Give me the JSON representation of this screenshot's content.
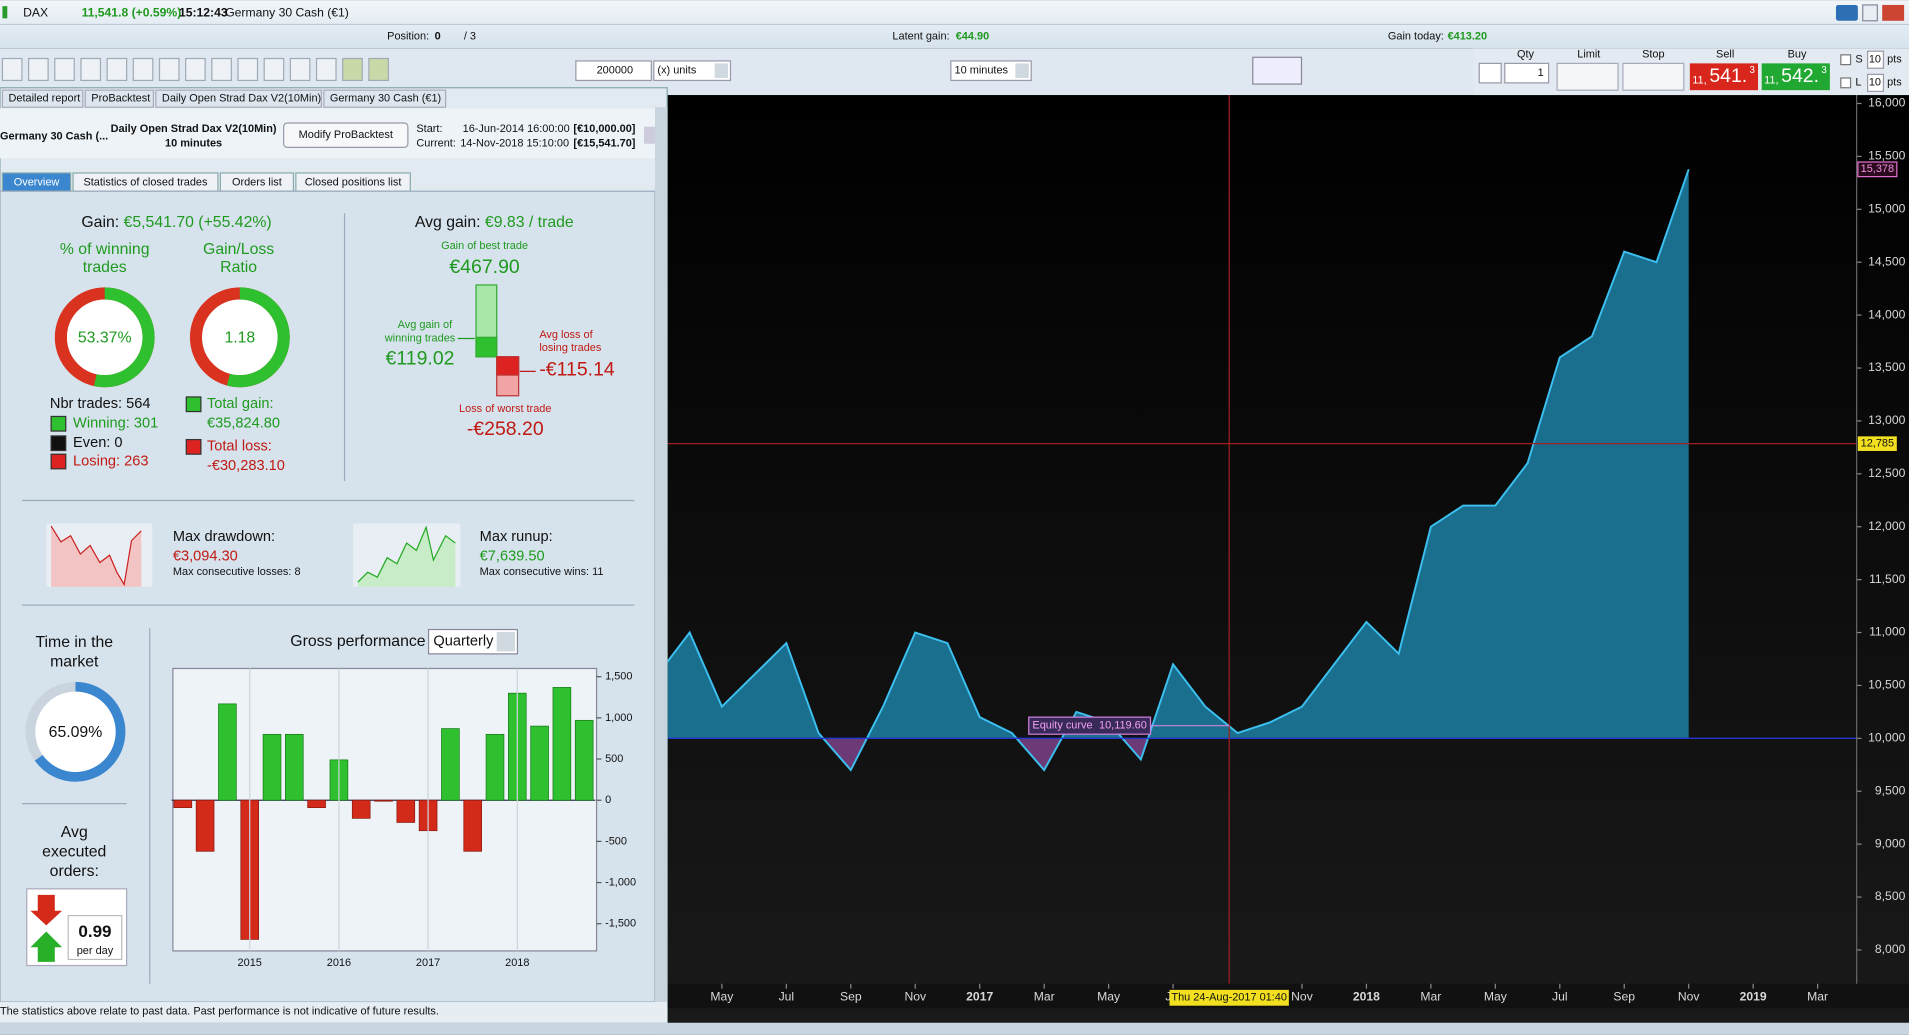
{
  "top_bar": {
    "instrument": "DAX",
    "quote": "11,541.8 (+0.59%)",
    "time": "15:12:43",
    "name": "Germany 30 Cash (€1)"
  },
  "status_bar": {
    "position_label": "Position:",
    "position": "0",
    "orders": "/ 3",
    "latent_label": "Latent gain:",
    "latent": "€44.90",
    "today_label": "Gain today:",
    "today": "€413.20"
  },
  "toolbar": {
    "amount": "200000",
    "units": "(x) units",
    "timeframe": "10 minutes"
  },
  "order_ticket": {
    "qty_label": "Qty",
    "qty": "1",
    "limit": "Limit",
    "stop": "Stop",
    "sell_label": "Sell",
    "buy_label": "Buy",
    "sell_small": "11,",
    "sell_big": "541.",
    "sell_frac": "3",
    "buy_small": "11,",
    "buy_big": "542.",
    "buy_frac": "3",
    "s": "S",
    "l": "L",
    "s_pts": "10",
    "l_pts": "10",
    "pts": "pts"
  },
  "panel_tabs": [
    "Detailed report",
    "ProBacktest",
    "Daily Open Strad Dax V2(10Min)",
    "Germany 30 Cash (€1)"
  ],
  "backtest_header": {
    "instrument": "Germany 30 Cash (...",
    "strategy": "Daily Open Strad Dax V2(10Min)",
    "timeframe": "10 minutes",
    "button": "Modify ProBacktest",
    "start_label": "Start:",
    "start_date": "16-Jun-2014 16:00:00",
    "start_capital": "[€10,000.00]",
    "current_label": "Current:",
    "current_date": "14-Nov-2018 15:10:00",
    "current_capital": "[€15,541.70]"
  },
  "subtabs": [
    "Overview",
    "Statistics of closed trades",
    "Orders list",
    "Closed positions list"
  ],
  "overview": {
    "gain_label": "Gain:",
    "gain": "€5,541.70 (+55.42%)",
    "win_title": [
      "% of winning",
      "trades"
    ],
    "ratio_title": [
      "Gain/Loss",
      "Ratio"
    ],
    "win_rate": {
      "value": 53.37,
      "label": "53.37%"
    },
    "gain_loss_ratio": 1.18,
    "nbr_trades": "Nbr trades: 564",
    "winning": "Winning: 301",
    "even": "Even: 0",
    "losing": "Losing: 263",
    "total_gain_label": "Total gain:",
    "total_gain": "€35,824.80",
    "total_loss_label": "Total loss:",
    "total_loss": "-€30,283.10",
    "avg_gain_label": "Avg gain:",
    "avg_gain": "€9.83 / trade",
    "best_label": "Gain of best trade",
    "best": "€467.90",
    "avg_win_label": [
      "Avg gain of",
      "winning trades"
    ],
    "avg_win": "€119.02",
    "avg_loss_label": [
      "Avg loss of",
      "losing trades"
    ],
    "avg_loss": "-€115.14",
    "worst_label": "Loss of worst trade",
    "worst": "-€258.20",
    "drawdown_label": "Max drawdown:",
    "drawdown": "€3,094.30",
    "max_losses": "Max consecutive losses: 8",
    "runup_label": "Max runup:",
    "runup": "€7,639.50",
    "max_wins": "Max consecutive wins: 11",
    "market_title": [
      "Time in the",
      "market"
    ],
    "time_in_market": {
      "value": 65.09,
      "label": "65.09%"
    },
    "orders_title": [
      "Avg",
      "executed",
      "orders:"
    ],
    "orders_per_day": "0.99",
    "per_day": "per day"
  },
  "gross_performance": {
    "title": "Gross performance",
    "period": "Quarterly"
  },
  "disclaimer": "The statistics above relate to past data. Past performance is not indicative of future results.",
  "chart_data": [
    {
      "type": "area",
      "x": [
        "2016-03",
        "2016-04",
        "2016-05",
        "2016-06",
        "2016-07",
        "2016-08",
        "2016-09",
        "2016-10",
        "2016-11",
        "2016-12",
        "2017-01",
        "2017-02",
        "2017-03",
        "2017-04",
        "2017-05",
        "2017-06",
        "2017-07",
        "2017-08",
        "2017-09",
        "2017-10",
        "2017-11",
        "2017-12",
        "2018-01",
        "2018-02",
        "2018-03",
        "2018-04",
        "2018-05",
        "2018-06",
        "2018-07",
        "2018-08",
        "2018-09",
        "2018-10",
        "2018-11"
      ],
      "series": [
        {
          "name": "Equity curve",
          "color": "#3cc0f0",
          "values": [
            10600,
            11000,
            10300,
            10600,
            10900,
            10050,
            9700,
            10300,
            11000,
            10900,
            10200,
            10050,
            9700,
            10250,
            10150,
            9800,
            10700,
            10300,
            10050,
            10150,
            10300,
            10700,
            11100,
            10800,
            12000,
            12200,
            12200,
            12600,
            13600,
            13800,
            14600,
            14500,
            15378
          ]
        }
      ],
      "xlim": [
        "2016-03",
        "2019-04"
      ],
      "xticks": [
        {
          "value": "2016-05",
          "label": "May"
        },
        {
          "value": "2016-07",
          "label": "Jul"
        },
        {
          "value": "2016-09",
          "label": "Sep"
        },
        {
          "value": "2016-11",
          "label": "Nov"
        },
        {
          "value": "2017-01",
          "label": "2017"
        },
        {
          "value": "2017-03",
          "label": "Mar"
        },
        {
          "value": "2017-05",
          "label": "May"
        },
        {
          "value": "2017-07",
          "label": "Jul"
        },
        {
          "value": "2017-11",
          "label": "Nov"
        },
        {
          "value": "2018-01",
          "label": "2018"
        },
        {
          "value": "2018-03",
          "label": "Mar"
        },
        {
          "value": "2018-05",
          "label": "May"
        },
        {
          "value": "2018-07",
          "label": "Jul"
        },
        {
          "value": "2018-09",
          "label": "Sep"
        },
        {
          "value": "2018-11",
          "label": "Nov"
        },
        {
          "value": "2019-01",
          "label": "2019"
        },
        {
          "value": "2019-03",
          "label": "Mar"
        }
      ],
      "ylim": [
        7680,
        16080
      ],
      "yticks": [
        {
          "value": 8000,
          "label": "8,000"
        },
        {
          "value": 8500,
          "label": "8,500"
        },
        {
          "value": 9000,
          "label": "9,000"
        },
        {
          "value": 9500,
          "label": "9,500"
        },
        {
          "value": 10000,
          "label": "10,000"
        },
        {
          "value": 10500,
          "label": "10,500"
        },
        {
          "value": 11000,
          "label": "11,000"
        },
        {
          "value": 11500,
          "label": "11,500"
        },
        {
          "value": 12000,
          "label": "12,000"
        },
        {
          "value": 12500,
          "label": "12,500"
        },
        {
          "value": 13000,
          "label": "13,000"
        },
        {
          "value": 13500,
          "label": "13,500"
        },
        {
          "value": 14000,
          "label": "14,000"
        },
        {
          "value": 14500,
          "label": "14,500"
        },
        {
          "value": 15000,
          "label": "15,000"
        },
        {
          "value": 15500,
          "label": "15,500"
        },
        {
          "value": 16000,
          "label": "16,000"
        }
      ],
      "baseline": 10000,
      "above_color": "#1b6f8e",
      "below_color": "#6d3a78",
      "crosshair": {
        "date": "2017-08-24",
        "label": "Thu 24-Aug-2017 01:40",
        "y": {
          "value": 12785,
          "label": "12,785"
        }
      },
      "last": {
        "value": 15378,
        "label": "15,378"
      },
      "tooltip": {
        "value": 10119.6,
        "label": "10,119.60"
      }
    },
    {
      "type": "bar",
      "categories": [
        null,
        null,
        null,
        "2015",
        null,
        null,
        null,
        "2016",
        null,
        null,
        null,
        "2017",
        null,
        null,
        null,
        "2018",
        null,
        null,
        null
      ],
      "values": [
        -90,
        -620,
        1170,
        -1690,
        800,
        800,
        -90,
        490,
        -220,
        -10,
        -270,
        -370,
        870,
        -620,
        800,
        1300,
        900,
        1370,
        970
      ],
      "positive_color": "#2ec02e",
      "negative_color": "#d42a1a",
      "ylim": [
        -1830,
        1600
      ],
      "yticks": [
        {
          "value": 1500,
          "label": "1,500"
        },
        {
          "value": 1000,
          "label": "1,000"
        },
        500,
        0,
        -500,
        {
          "value": -1000,
          "label": "-1,000"
        },
        {
          "value": -1500,
          "label": "-1,500"
        }
      ]
    }
  ]
}
